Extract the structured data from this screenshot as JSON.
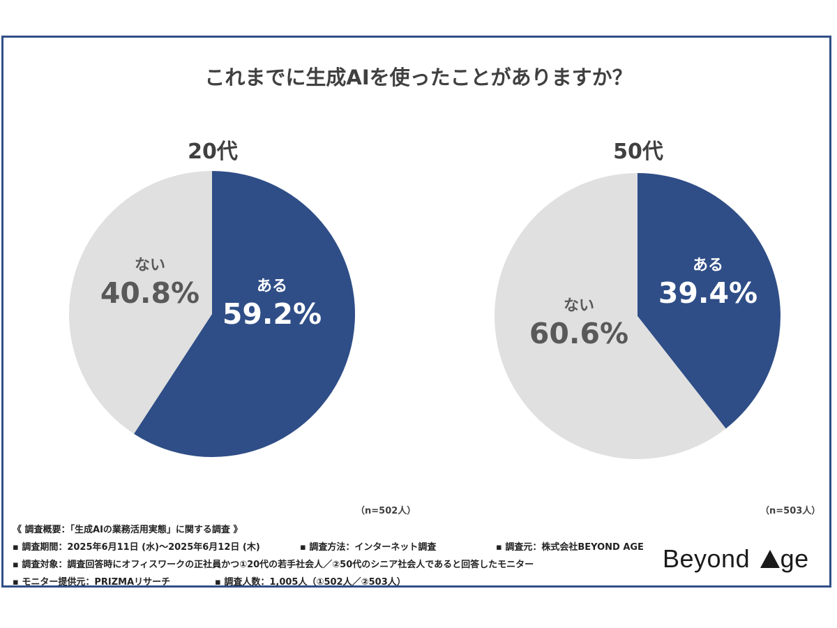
{
  "title": "これまでに生成AIを使ったことがありますか？",
  "colors": {
    "yes": "#2f4e87",
    "no": "#e0e0e0",
    "frame": "#2f4e87"
  },
  "chart_data": [
    {
      "type": "pie",
      "title": "20代",
      "labels": [
        "ある",
        "ない"
      ],
      "values": [
        59.2,
        40.8
      ],
      "value_labels": [
        "59.2%",
        "40.8%"
      ],
      "n": "（n=502人）"
    },
    {
      "type": "pie",
      "title": "50代",
      "labels": [
        "ある",
        "ない"
      ],
      "values": [
        39.4,
        60.6
      ],
      "value_labels": [
        "39.4%",
        "60.6%"
      ],
      "n": "（n=503人）"
    }
  ],
  "notes": {
    "heading": "《 調査概要：「生成AIの業務活用実態」に関する調査 》",
    "period": "▪ 調査期間：2025年6月11日 (水)〜2025年6月12日 (木)",
    "method": "▪ 調査方法：インターネット調査",
    "source": "▪ 調査元：株式会社BEYOND AGE",
    "target": "▪ 調査対象：調査回答時にオフィスワークの正社員かつ①20代の若手社会人／②50代のシニア社会人であると回答したモニター",
    "provider": "▪ モニター提供元：PRIZMAリサーチ",
    "count": "▪ 調査人数：1,005人（①502人／②503人）"
  },
  "logo": {
    "text_left": "Beyond ",
    "text_right": "ge",
    "mark": "triangle-icon"
  }
}
